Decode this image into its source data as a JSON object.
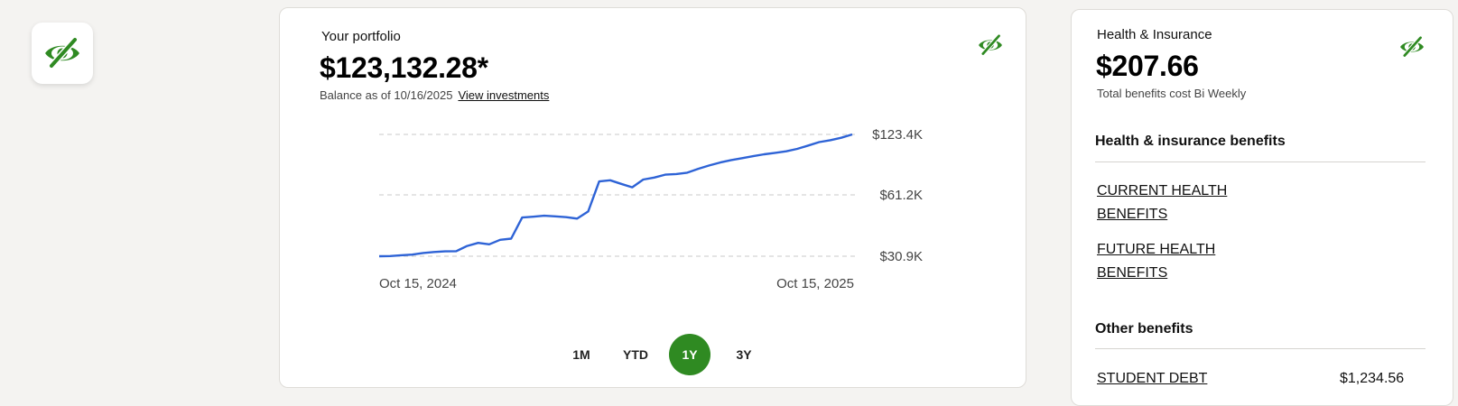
{
  "privacy_toggle": {
    "icon": "eye-slash-icon",
    "color": "#2f8a22"
  },
  "portfolio": {
    "title": "Your portfolio",
    "balance": "$123,132.28*",
    "balance_date_text": "Balance as of 10/16/2025",
    "view_investments_label": "View investments",
    "hide_icon": "eye-slash-icon",
    "ranges": [
      "1M",
      "YTD",
      "1Y",
      "3Y"
    ],
    "active_range": "1Y"
  },
  "chart_data": {
    "type": "line",
    "y_tick_labels": [
      "$123.4K",
      "$61.2K",
      "$30.9K"
    ],
    "x_tick_labels": [
      "Oct 15, 2024",
      "Oct 15, 2025"
    ],
    "grid": "dashed horizontal",
    "line_color": "#2e63d6",
    "series": [
      {
        "values": [
          30.9,
          31.0,
          31.4,
          31.7,
          32.5,
          33.0,
          33.3,
          33.4,
          36.0,
          37.5,
          36.8,
          39.0,
          39.6,
          50.0,
          50.4,
          50.9,
          50.6,
          50.2,
          49.5,
          53.0,
          75.0,
          76.2,
          72.5,
          69.0,
          77.0,
          79.0,
          82.0,
          82.6,
          84.0,
          88.0,
          91.5,
          94.5,
          97.0,
          99.0,
          101.0,
          103.0,
          104.5,
          106.0,
          108.5,
          112.0,
          115.5,
          117.5,
          120.0,
          123.4
        ]
      }
    ]
  },
  "health": {
    "title": "Health & Insurance",
    "amount": "$207.66",
    "subtitle": "Total benefits cost Bi Weekly",
    "hide_icon": "eye-slash-icon",
    "benefits_heading": "Health & insurance benefits",
    "current_link": "CURRENT HEALTH BENEFITS",
    "future_link": "FUTURE HEALTH BENEFITS",
    "other_heading": "Other benefits",
    "student_debt_label": "STUDENT DEBT",
    "student_debt_amount": "$1,234.56"
  }
}
